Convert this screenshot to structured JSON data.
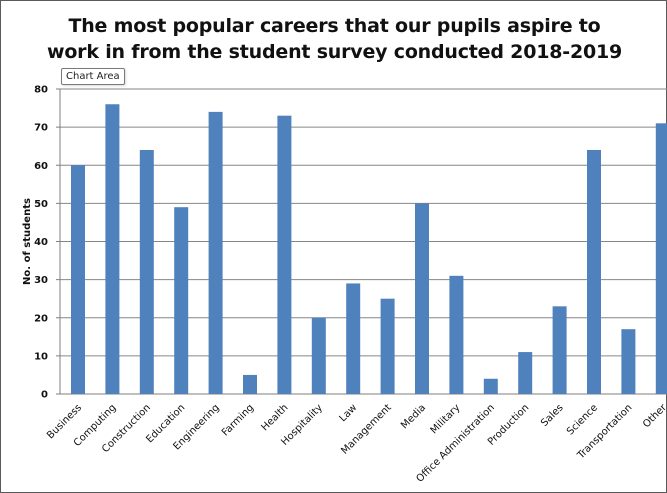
{
  "chart_area_tooltip": "Chart Area",
  "chart_data": {
    "type": "bar",
    "title_line1": "The most popular careers that our pupils aspire to",
    "title_line2": "work in from the student survey conducted 2018-2019",
    "xlabel": "",
    "ylabel": "No. of students",
    "ylim": [
      0,
      80
    ],
    "yticks": [
      0,
      10,
      20,
      30,
      40,
      50,
      60,
      70,
      80
    ],
    "grid": true,
    "bar_color": "#4f81bd",
    "categories": [
      "Business",
      "Computing",
      "Construction",
      "Education",
      "Engineering",
      "Farming",
      "Health",
      "Hospitality",
      "Law",
      "Management",
      "Media",
      "Military",
      "Office Administration",
      "Production",
      "Sales",
      "Science",
      "Transportation",
      "Other"
    ],
    "values": [
      60,
      76,
      64,
      49,
      74,
      5,
      73,
      20,
      29,
      25,
      50,
      31,
      4,
      11,
      23,
      64,
      17,
      71
    ]
  }
}
